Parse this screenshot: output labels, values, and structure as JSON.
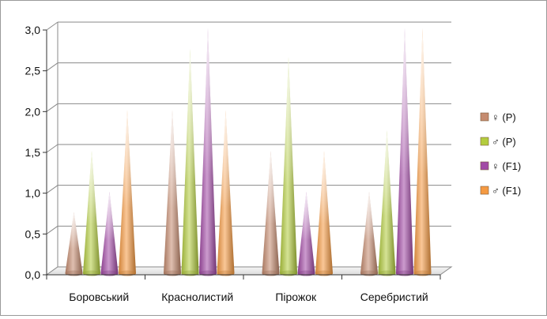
{
  "chart_data": {
    "type": "bar",
    "shape": "cone",
    "categories": [
      "Боровський",
      "Краснолистий",
      "Пірожок",
      "Серебристий"
    ],
    "series": [
      {
        "name": "♀ (P)",
        "color": "#c58b6f",
        "values": [
          0.75,
          2.0,
          1.5,
          1.0
        ]
      },
      {
        "name": "♂ (P)",
        "color": "#b3cc3e",
        "values": [
          1.5,
          2.75,
          2.65,
          1.75
        ]
      },
      {
        "name": "♀ (F1)",
        "color": "#a24aa6",
        "values": [
          1.0,
          3.0,
          1.0,
          3.0
        ]
      },
      {
        "name": "♂ (F1)",
        "color": "#f59a42",
        "values": [
          2.0,
          2.0,
          1.5,
          3.0
        ]
      }
    ],
    "y_ticks": [
      "0,0",
      "0,5",
      "1,0",
      "1,5",
      "2,0",
      "2,5",
      "3,0"
    ],
    "ylim": [
      0,
      3.0
    ],
    "grid": true,
    "legend_position": "right"
  }
}
